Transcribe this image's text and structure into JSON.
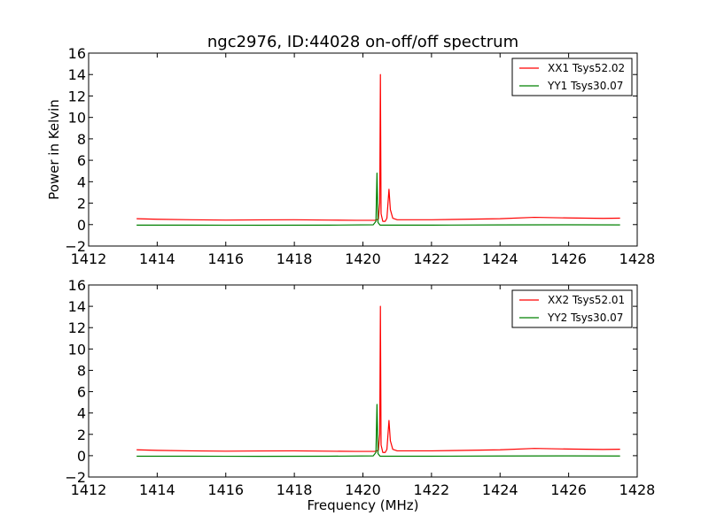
{
  "chart_data": [
    {
      "type": "line",
      "title": "ngc2976, ID:44028 on-off/off spectrum",
      "xlabel": "",
      "ylabel": "Power in Kelvin",
      "xlim": [
        1412,
        1428
      ],
      "ylim": [
        -2,
        16
      ],
      "x_ticks": [
        "1412",
        "1414",
        "1416",
        "1418",
        "1420",
        "1422",
        "1424",
        "1426",
        "1428"
      ],
      "y_ticks": [
        "−2",
        "0",
        "2",
        "4",
        "6",
        "8",
        "10",
        "12",
        "14",
        "16"
      ],
      "legend_position": "top-right",
      "grid": false,
      "series": [
        {
          "name": "XX1 Tsys52.02",
          "color": "#ff0000",
          "points": [
            [
              1413.4,
              0.55
            ],
            [
              1414.0,
              0.5
            ],
            [
              1415.0,
              0.45
            ],
            [
              1416.0,
              0.42
            ],
            [
              1417.0,
              0.44
            ],
            [
              1418.0,
              0.45
            ],
            [
              1419.0,
              0.42
            ],
            [
              1419.8,
              0.4
            ],
            [
              1420.35,
              0.4
            ],
            [
              1420.45,
              0.5
            ],
            [
              1420.49,
              2.0
            ],
            [
              1420.51,
              14.0
            ],
            [
              1420.53,
              1.0
            ],
            [
              1420.58,
              0.3
            ],
            [
              1420.65,
              0.3
            ],
            [
              1420.7,
              0.6
            ],
            [
              1420.76,
              3.3
            ],
            [
              1420.8,
              1.4
            ],
            [
              1420.87,
              0.6
            ],
            [
              1421.0,
              0.45
            ],
            [
              1422.0,
              0.45
            ],
            [
              1423.0,
              0.5
            ],
            [
              1424.0,
              0.55
            ],
            [
              1425.0,
              0.68
            ],
            [
              1426.0,
              0.62
            ],
            [
              1427.0,
              0.58
            ],
            [
              1427.5,
              0.6
            ]
          ]
        },
        {
          "name": "YY1 Tsys30.07",
          "color": "#008000",
          "points": [
            [
              1413.4,
              -0.05
            ],
            [
              1415.0,
              -0.05
            ],
            [
              1417.0,
              -0.06
            ],
            [
              1419.0,
              -0.05
            ],
            [
              1420.3,
              -0.02
            ],
            [
              1420.38,
              0.3
            ],
            [
              1420.41,
              4.8
            ],
            [
              1420.44,
              0.2
            ],
            [
              1420.5,
              -0.05
            ],
            [
              1422.0,
              -0.05
            ],
            [
              1424.0,
              -0.03
            ],
            [
              1426.0,
              -0.02
            ],
            [
              1427.5,
              -0.03
            ]
          ]
        }
      ]
    },
    {
      "type": "line",
      "title": "",
      "xlabel": "Frequency (MHz)",
      "ylabel": "",
      "xlim": [
        1412,
        1428
      ],
      "ylim": [
        -2,
        16
      ],
      "x_ticks": [
        "1412",
        "1414",
        "1416",
        "1418",
        "1420",
        "1422",
        "1424",
        "1426",
        "1428"
      ],
      "y_ticks": [
        "−2",
        "0",
        "2",
        "4",
        "6",
        "8",
        "10",
        "12",
        "14",
        "16"
      ],
      "legend_position": "top-right",
      "grid": false,
      "series": [
        {
          "name": "XX2 Tsys52.01",
          "color": "#ff0000",
          "points": [
            [
              1413.4,
              0.55
            ],
            [
              1414.0,
              0.5
            ],
            [
              1415.0,
              0.45
            ],
            [
              1416.0,
              0.42
            ],
            [
              1417.0,
              0.44
            ],
            [
              1418.0,
              0.45
            ],
            [
              1419.0,
              0.42
            ],
            [
              1419.8,
              0.4
            ],
            [
              1420.35,
              0.4
            ],
            [
              1420.45,
              0.5
            ],
            [
              1420.49,
              2.0
            ],
            [
              1420.51,
              14.0
            ],
            [
              1420.53,
              1.0
            ],
            [
              1420.58,
              0.3
            ],
            [
              1420.65,
              0.3
            ],
            [
              1420.7,
              0.6
            ],
            [
              1420.76,
              3.3
            ],
            [
              1420.8,
              1.4
            ],
            [
              1420.87,
              0.6
            ],
            [
              1421.0,
              0.45
            ],
            [
              1422.0,
              0.45
            ],
            [
              1423.0,
              0.5
            ],
            [
              1424.0,
              0.55
            ],
            [
              1425.0,
              0.68
            ],
            [
              1426.0,
              0.62
            ],
            [
              1427.0,
              0.58
            ],
            [
              1427.5,
              0.6
            ]
          ]
        },
        {
          "name": "YY2 Tsys30.07",
          "color": "#008000",
          "points": [
            [
              1413.4,
              -0.05
            ],
            [
              1415.0,
              -0.05
            ],
            [
              1417.0,
              -0.06
            ],
            [
              1419.0,
              -0.05
            ],
            [
              1420.3,
              -0.02
            ],
            [
              1420.38,
              0.3
            ],
            [
              1420.41,
              4.8
            ],
            [
              1420.44,
              0.2
            ],
            [
              1420.5,
              -0.05
            ],
            [
              1422.0,
              -0.05
            ],
            [
              1424.0,
              -0.03
            ],
            [
              1426.0,
              -0.02
            ],
            [
              1427.5,
              -0.03
            ]
          ]
        }
      ]
    }
  ]
}
